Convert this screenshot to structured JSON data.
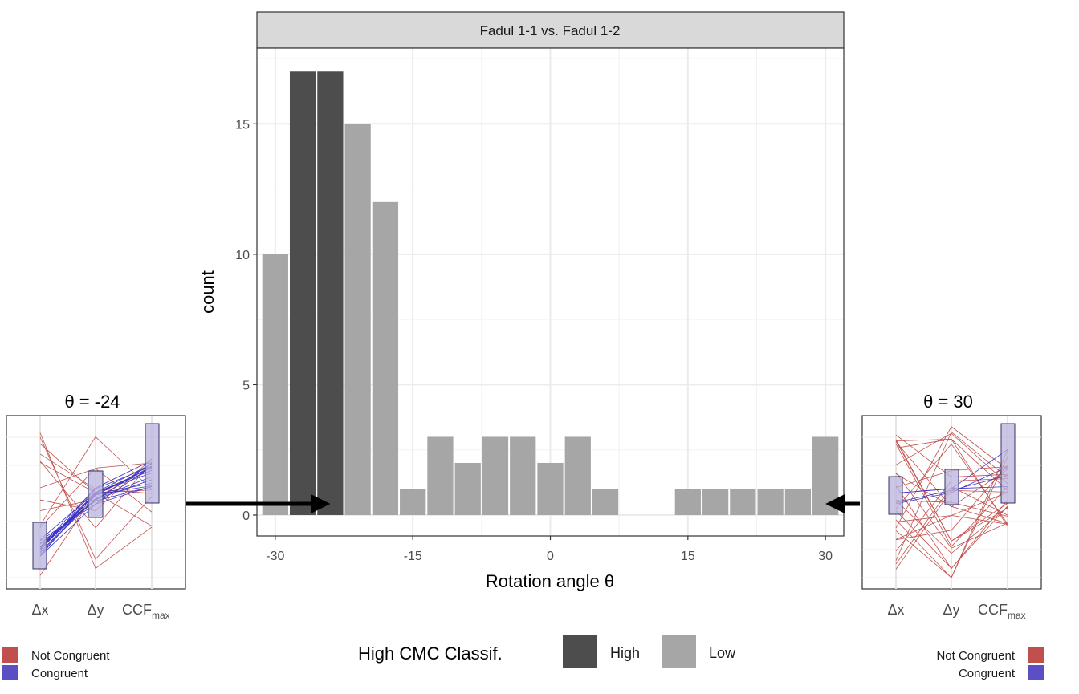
{
  "chart_data": {
    "type": "bar",
    "panel_title": "Fadul 1-1 vs. Fadul 1-2",
    "xlabel": "Rotation angle θ",
    "ylabel": "count",
    "xlim": [
      -32,
      32
    ],
    "ylim": [
      -0.8,
      17.9
    ],
    "x_ticks": [
      -30,
      -15,
      0,
      15,
      30
    ],
    "y_ticks": [
      0,
      5,
      10,
      15
    ],
    "bin_width": 3,
    "bars": [
      {
        "x": -30,
        "count": 10,
        "class": "Low"
      },
      {
        "x": -27,
        "count": 17,
        "class": "High"
      },
      {
        "x": -24,
        "count": 17,
        "class": "High"
      },
      {
        "x": -21,
        "count": 15,
        "class": "Low"
      },
      {
        "x": -18,
        "count": 12,
        "class": "Low"
      },
      {
        "x": -15,
        "count": 1,
        "class": "Low"
      },
      {
        "x": -12,
        "count": 3,
        "class": "Low"
      },
      {
        "x": -9,
        "count": 2,
        "class": "Low"
      },
      {
        "x": -6,
        "count": 3,
        "class": "Low"
      },
      {
        "x": -3,
        "count": 3,
        "class": "Low"
      },
      {
        "x": 0,
        "count": 2,
        "class": "Low"
      },
      {
        "x": 3,
        "count": 3,
        "class": "Low"
      },
      {
        "x": 6,
        "count": 1,
        "class": "Low"
      },
      {
        "x": 15,
        "count": 1,
        "class": "Low"
      },
      {
        "x": 18,
        "count": 1,
        "class": "Low"
      },
      {
        "x": 21,
        "count": 1,
        "class": "Low"
      },
      {
        "x": 24,
        "count": 1,
        "class": "Low"
      },
      {
        "x": 27,
        "count": 1,
        "class": "Low"
      },
      {
        "x": 30,
        "count": 3,
        "class": "Low"
      }
    ],
    "legend": {
      "title": "High CMC Classif.",
      "entries": [
        {
          "label": "High",
          "color": "#4d4d4d"
        },
        {
          "label": "Low",
          "color": "#a6a6a6"
        }
      ]
    },
    "insets": [
      {
        "title": "θ = -24",
        "side": "left",
        "arrow_target": -24
      },
      {
        "title": "θ = 30",
        "side": "right",
        "arrow_target": 30
      }
    ],
    "inset_axis_labels": {
      "dx": "Δx",
      "dy": "Δy",
      "ccf": "CCF",
      "ccf_sub": "max"
    },
    "inset_legend": [
      {
        "label": "Not Congruent",
        "color": "#c0504d"
      },
      {
        "label": "Congruent",
        "color": "#5b4fc4"
      }
    ]
  }
}
